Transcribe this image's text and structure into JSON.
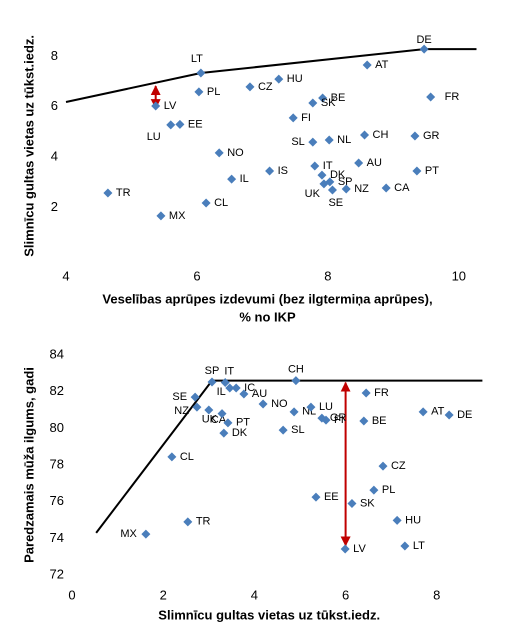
{
  "chart_data": [
    {
      "type": "scatter",
      "y_label": "Slimnīcu gultas vietas uz tūkst.iedz.",
      "x_label": [
        "Veselības aprūpes izdevumi (bez ilgtermiņa aprūpes),",
        "% no IKP"
      ],
      "xlim": [
        4,
        10.4
      ],
      "xticks": [
        4,
        6,
        8,
        10
      ],
      "ylim": [
        0,
        8.9
      ],
      "yticks": [
        2,
        4,
        6,
        8
      ],
      "series": [
        {
          "color": "#4a7ebb",
          "labels": [
            "DE",
            "AT",
            "FR",
            "LT",
            "HU",
            "CZ",
            "PL",
            "BE",
            "SK",
            "LV",
            "FI",
            "EE",
            "LU",
            "CH",
            "GR",
            "SL",
            "NL",
            "NO",
            "IT",
            "AU",
            "IS",
            "PT",
            "DK",
            "IL",
            "SP",
            "UK",
            "NZ",
            "SE",
            "CA",
            "TR",
            "CL",
            "MX"
          ],
          "x": [
            9.47,
            8.6,
            9.57,
            6.06,
            7.25,
            6.81,
            6.03,
            7.92,
            7.77,
            5.37,
            7.47,
            5.74,
            5.6,
            8.56,
            9.33,
            7.77,
            8.02,
            6.34,
            7.8,
            8.47,
            7.11,
            9.36,
            7.91,
            6.53,
            8.03,
            7.94,
            8.28,
            8.07,
            8.89,
            4.64,
            6.14,
            5.45
          ],
          "values": [
            8.29,
            7.66,
            6.39,
            7.34,
            7.1,
            6.79,
            6.59,
            6.35,
            6.15,
            6.03,
            5.56,
            5.3,
            5.28,
            4.88,
            4.84,
            4.6,
            4.68,
            4.17,
            3.65,
            3.77,
            3.45,
            3.45,
            3.29,
            3.13,
            3.02,
            2.94,
            2.74,
            2.7,
            2.78,
            2.58,
            2.18,
            1.67
          ]
        }
      ],
      "frontier": {
        "color": "#000000",
        "x": [
          4,
          6.06,
          9.47,
          10.27
        ],
        "values": [
          6.19,
          7.34,
          8.29,
          8.29
        ]
      },
      "arrow": {
        "color": "#c00000",
        "x": [
          5.37,
          5.37
        ],
        "values": [
          6.9,
          5.87
        ]
      }
    },
    {
      "type": "scatter",
      "y_label": "Paredzamais mūža ilgums, gadi",
      "x_label": [
        "Slimnīcu gultas vietas uz tūkst.iedz."
      ],
      "xlim": [
        0,
        9
      ],
      "xticks": [
        0,
        2,
        4,
        6,
        8
      ],
      "ylim": [
        72,
        84
      ],
      "yticks": [
        72,
        74,
        76,
        78,
        80,
        82,
        84
      ],
      "series": [
        {
          "color": "#4a7ebb",
          "labels": [
            "SP",
            "IT",
            "CH",
            "IL",
            "IC",
            "AU",
            "SE",
            "NZ",
            "CA",
            "NO",
            "NL",
            "LU",
            "GR",
            "FI",
            "FR",
            "BE",
            "AT",
            "DE",
            "UK",
            "PT",
            "DK",
            "SL",
            "CL",
            "CZ",
            "PL",
            "EE",
            "SK",
            "HU",
            "TR",
            "MX",
            "LV",
            "LT"
          ],
          "x": [
            3.07,
            3.36,
            4.91,
            3.46,
            3.6,
            3.77,
            2.7,
            2.74,
            3.0,
            4.19,
            4.87,
            5.24,
            5.48,
            5.57,
            6.45,
            6.4,
            7.7,
            8.27,
            3.29,
            3.42,
            3.33,
            4.63,
            2.19,
            6.82,
            6.62,
            5.35,
            6.14,
            7.13,
            2.54,
            1.62,
            5.99,
            7.3
          ],
          "values": [
            82.53,
            82.5,
            82.6,
            82.2,
            82.2,
            81.87,
            81.7,
            81.16,
            81.0,
            81.33,
            80.9,
            81.16,
            80.56,
            80.45,
            81.93,
            80.4,
            80.9,
            80.73,
            80.8,
            80.3,
            79.74,
            79.9,
            78.44,
            77.94,
            76.63,
            76.25,
            75.9,
            74.98,
            74.9,
            74.23,
            73.42,
            73.58
          ]
        }
      ],
      "frontier": {
        "color": "#000000",
        "x": [
          0.53,
          3.07,
          9
        ],
        "values": [
          74.3,
          82.6,
          82.6
        ]
      },
      "arrow": {
        "color": "#c00000",
        "x": [
          6.0,
          6.0
        ],
        "values": [
          82.6,
          73.5
        ]
      }
    }
  ]
}
